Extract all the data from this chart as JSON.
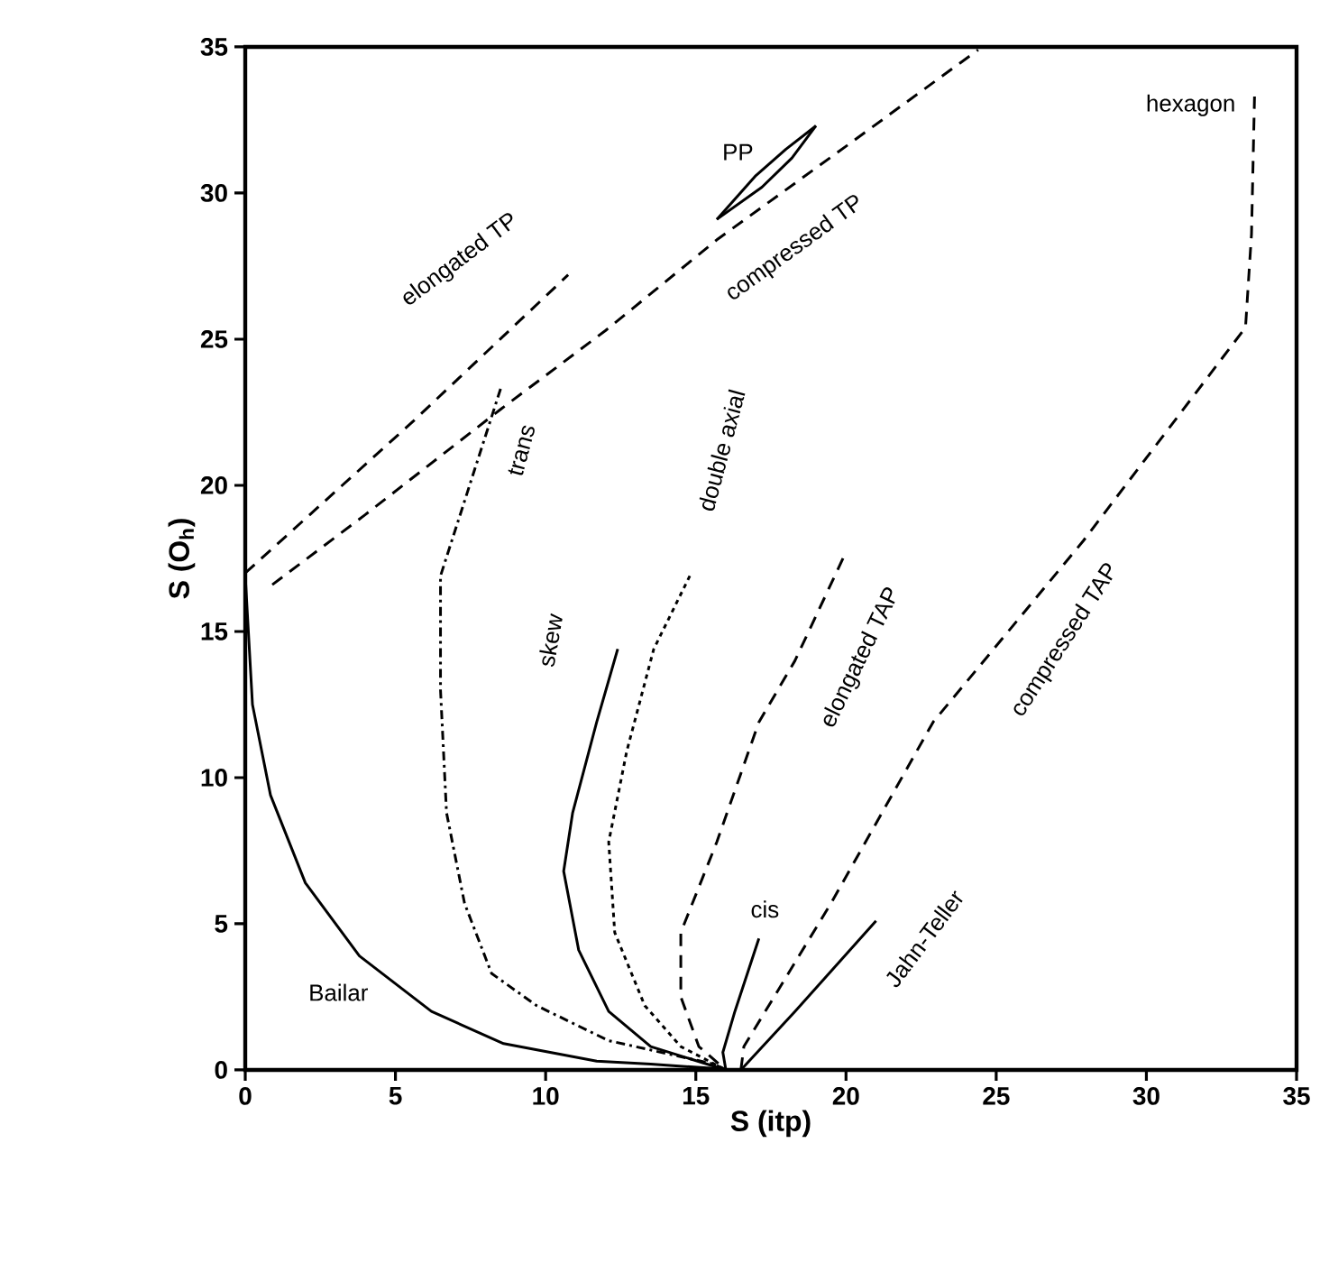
{
  "chart_data": {
    "type": "line",
    "xlabel": "S (itp)",
    "ylabel": "S (O$_{h}$)",
    "xlim": [
      0,
      35
    ],
    "ylim": [
      0,
      35
    ],
    "xticks": [
      0,
      5,
      10,
      15,
      20,
      25,
      30,
      35
    ],
    "yticks": [
      0,
      5,
      10,
      15,
      20,
      25,
      30,
      35
    ],
    "marker": "none",
    "series": [
      {
        "name": "Bailar",
        "color": "#000000",
        "line_style": "solid",
        "x": [
          0,
          0.24,
          0.84,
          2.0,
          3.8,
          6.2,
          8.6,
          11.7,
          13.5,
          15.6,
          16.0
        ],
        "values": [
          16.9,
          12.5,
          9.4,
          6.4,
          3.9,
          2.0,
          0.9,
          0.3,
          0.2,
          0.05,
          0
        ]
      },
      {
        "name": "trans",
        "color": "#000000",
        "line_style": "dashdot",
        "x": [
          8.5,
          6.5,
          6.5,
          6.7,
          7.3,
          8.2,
          9.7,
          12.1,
          15.6,
          16.0
        ],
        "values": [
          23.3,
          16.9,
          13.0,
          8.8,
          5.7,
          3.3,
          2.2,
          1.0,
          0.2,
          0
        ]
      },
      {
        "name": "skew",
        "color": "#000000",
        "line_style": "solid",
        "x": [
          12.4,
          11.7,
          10.9,
          10.6,
          11.1,
          12.1,
          13.5,
          16.0
        ],
        "values": [
          14.4,
          11.9,
          8.8,
          6.8,
          4.1,
          2.0,
          0.8,
          0
        ]
      },
      {
        "name": "double axial",
        "color": "#000000",
        "line_style": "dotted",
        "x": [
          14.8,
          13.6,
          12.7,
          12.1,
          12.3,
          13.3,
          14.5,
          16.0
        ],
        "values": [
          16.9,
          14.4,
          10.9,
          7.8,
          4.7,
          2.2,
          0.8,
          0
        ]
      },
      {
        "name": "elongated TAP",
        "color": "#000000",
        "line_style": "dashed",
        "x": [
          19.9,
          18.3,
          17.1,
          15.7,
          14.5,
          14.5,
          15.1,
          16.0
        ],
        "values": [
          17.5,
          14.0,
          11.9,
          7.8,
          4.7,
          2.5,
          0.8,
          0
        ]
      },
      {
        "name": "cis",
        "color": "#000000",
        "line_style": "solid",
        "x": [
          17.1,
          16.3,
          15.9,
          16.0
        ],
        "values": [
          4.5,
          2.0,
          0.6,
          0
        ]
      },
      {
        "name": "compressed TAP",
        "color": "#000000",
        "line_style": "dashed",
        "x": [
          16.5,
          16.6,
          19.5,
          22.9,
          27.9,
          33.3,
          33.5,
          33.6
        ],
        "values": [
          0,
          0.8,
          5.7,
          11.9,
          18.1,
          25.4,
          28.6,
          33.3
        ]
      },
      {
        "name": "Jahn-Teller",
        "color": "#000000",
        "line_style": "solid",
        "x": [
          16.5,
          18.3,
          21.0
        ],
        "values": [
          0,
          2.0,
          5.1
        ]
      },
      {
        "name": "elongated TP",
        "color": "#000000",
        "line_style": "dashed",
        "x": [
          0,
          5.6,
          10.75
        ],
        "values": [
          17.0,
          22.2,
          27.2
        ]
      },
      {
        "name": "compressed TP",
        "color": "#000000",
        "line_style": "dashed",
        "x": [
          0.9,
          4.0,
          8.5,
          12.0,
          15.7,
          20.0,
          24.4
        ],
        "values": [
          16.6,
          19.0,
          22.6,
          25.3,
          28.4,
          31.6,
          34.9
        ]
      },
      {
        "name": "PP",
        "color": "#000000",
        "line_style": "solid",
        "x": [
          15.7,
          17.0,
          18.0,
          19.0
        ],
        "values": [
          29.1,
          30.6,
          31.5,
          32.3
        ]
      },
      {
        "color": "#000000",
        "line_style": "solid",
        "x": [
          15.7,
          17.2,
          18.2,
          19.0
        ],
        "values": [
          29.1,
          30.2,
          31.2,
          32.3
        ]
      }
    ],
    "annotations": [
      {
        "text": "hexagon",
        "x": 33.6,
        "y": 33.3
      }
    ]
  }
}
